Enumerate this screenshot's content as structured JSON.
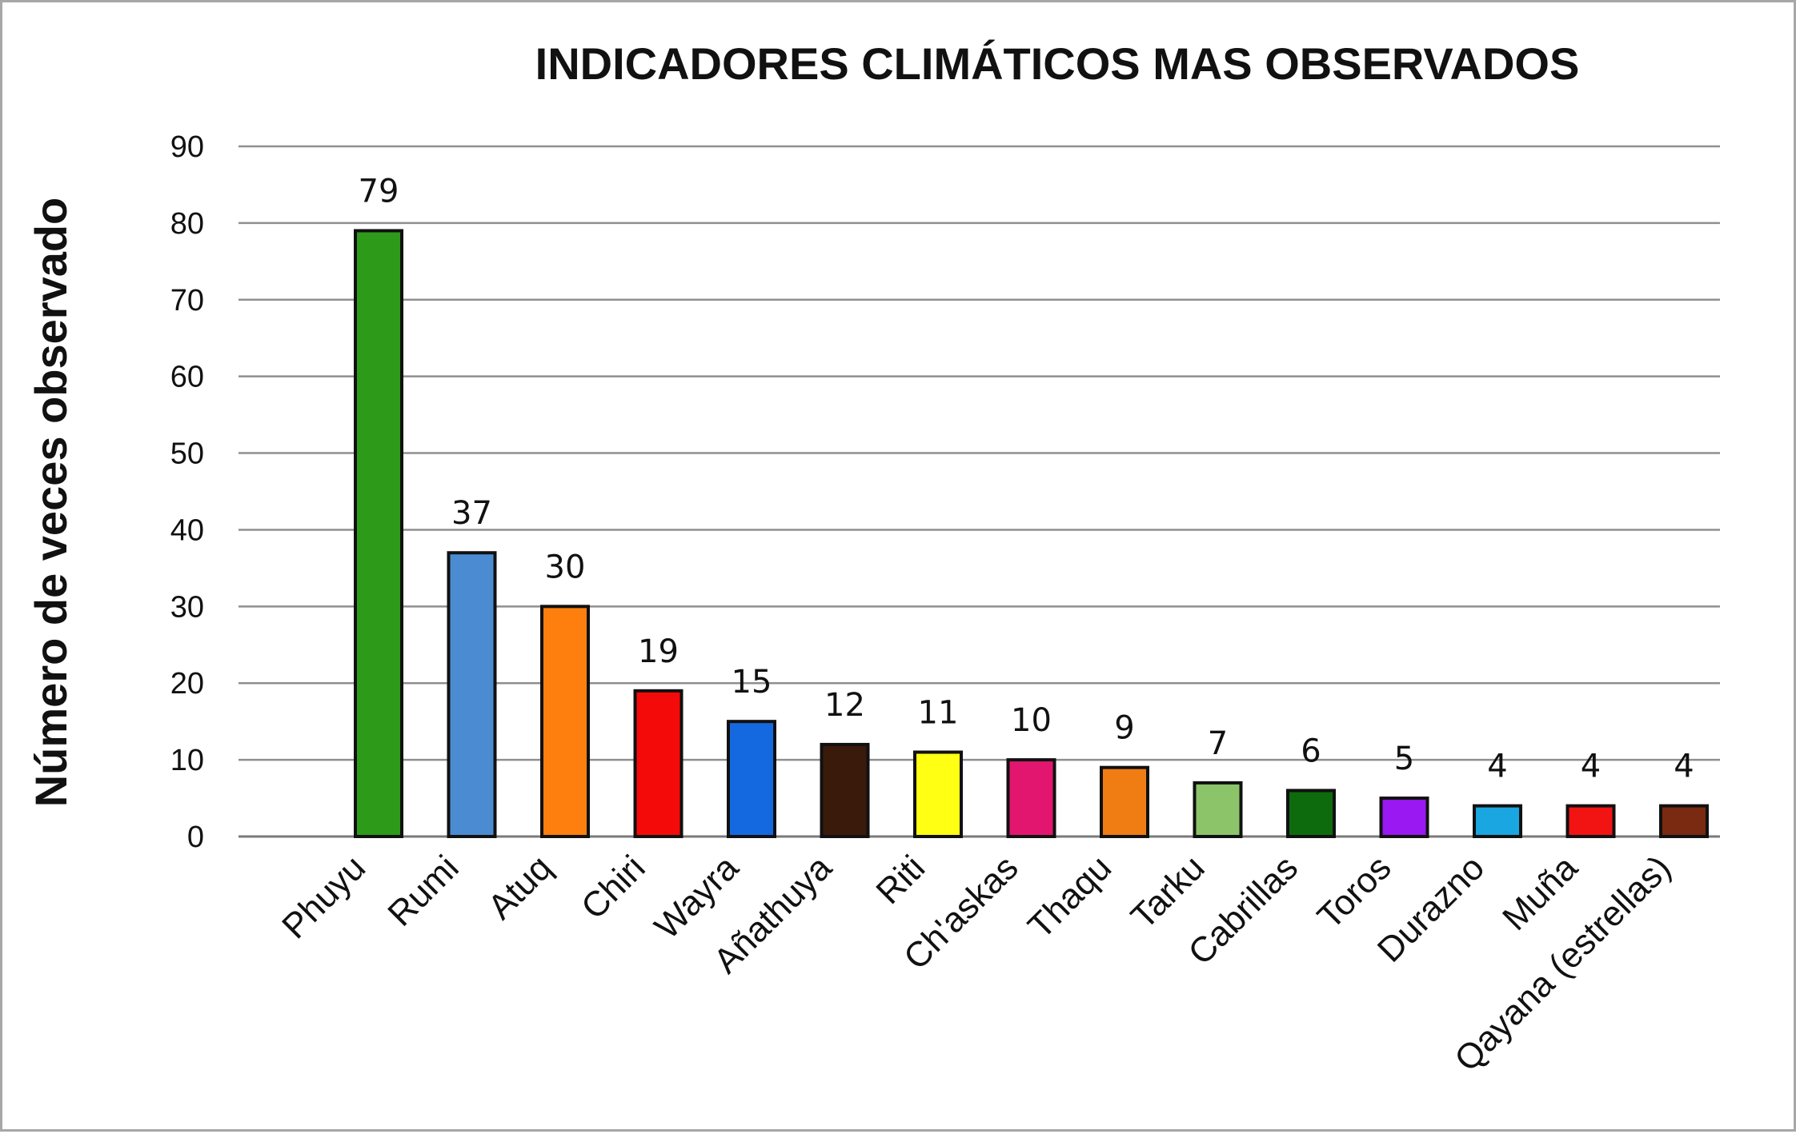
{
  "chart_data": {
    "type": "bar",
    "title": "INDICADORES CLIMÁTICOS MAS OBSERVADOS",
    "xlabel": "",
    "ylabel": "Número de veces observado",
    "ylim": [
      0,
      90
    ],
    "yticks": [
      0,
      10,
      20,
      30,
      40,
      50,
      60,
      70,
      80,
      90
    ],
    "grid": true,
    "categories": [
      "Phuyu",
      "Rumi",
      "Atuq",
      "Chiri",
      "Wayra",
      "Añathuya",
      "Riti",
      "Ch'askas",
      "Thaqu",
      "Tarku",
      "Cabrillas",
      "Toros",
      "Durazno",
      "Muña",
      "Qayana (estrellas)"
    ],
    "values": [
      79,
      37,
      30,
      19,
      15,
      12,
      11,
      10,
      9,
      7,
      6,
      5,
      4,
      4,
      4
    ],
    "colors": [
      "#2e9a1a",
      "#4b8bd1",
      "#ff7f0e",
      "#f50a0a",
      "#1569e0",
      "#3a1a0a",
      "#ffff14",
      "#e3166f",
      "#f07d14",
      "#8cc46a",
      "#0d6b0d",
      "#9a19f2",
      "#1aa6e0",
      "#f21313",
      "#7a2a10"
    ]
  }
}
